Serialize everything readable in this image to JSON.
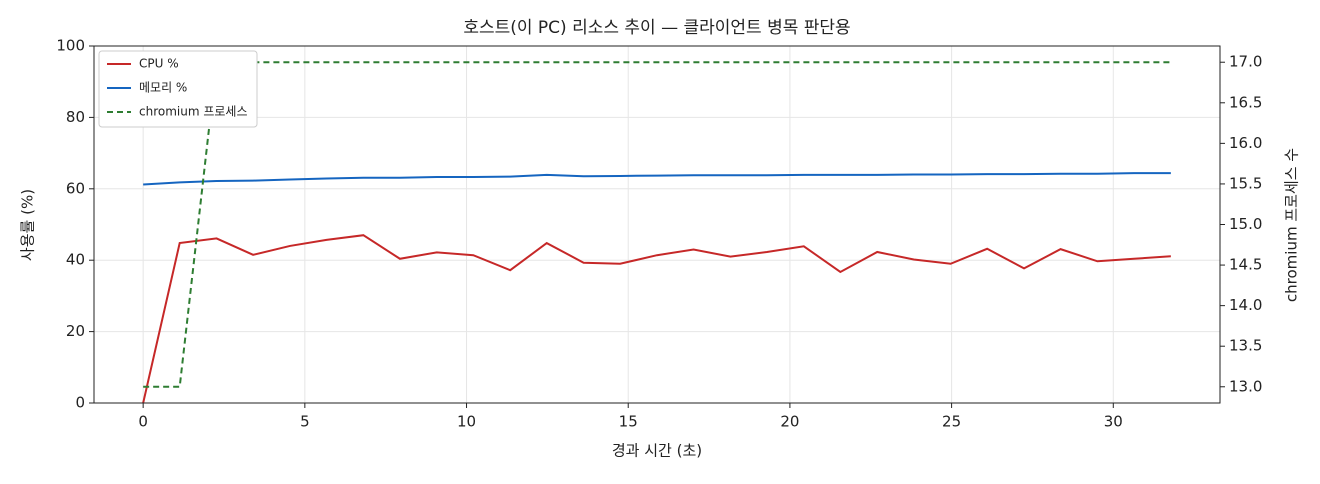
{
  "chart_data": {
    "type": "line",
    "title": "호스트(이 PC) 리소스 추이 — 클라이언트 병목 판단용",
    "xlabel": "경과 시간 (초)",
    "ylabel": "사용률 (%)",
    "y2label": "chromium 프로세스 수",
    "x": [
      0,
      1.13,
      2.27,
      3.4,
      4.54,
      5.67,
      6.81,
      7.94,
      9.08,
      10.21,
      11.35,
      12.48,
      13.62,
      14.75,
      15.89,
      17.02,
      18.16,
      19.29,
      20.43,
      21.56,
      22.7,
      23.83,
      24.97,
      26.1,
      27.24,
      28.37,
      29.51,
      30.64,
      31.78
    ],
    "series": [
      {
        "name": "CPU %",
        "color": "#c62828",
        "values": [
          0,
          44.8,
          46.1,
          41.5,
          44,
          45.7,
          47,
          40.4,
          42.2,
          41.4,
          37.2,
          44.8,
          39.3,
          39,
          41.4,
          43,
          41,
          42.3,
          43.9,
          36.7,
          42.3,
          40.2,
          39,
          43.2,
          37.7,
          43.1,
          39.7,
          40.4,
          41.1
        ]
      },
      {
        "name": "메모리 %",
        "color": "#1565c0",
        "values": [
          61.2,
          61.8,
          62.2,
          62.3,
          62.6,
          62.9,
          63.1,
          63.1,
          63.3,
          63.3,
          63.4,
          63.9,
          63.5,
          63.6,
          63.7,
          63.8,
          63.8,
          63.8,
          63.9,
          63.9,
          63.9,
          64,
          64,
          64.1,
          64.1,
          64.2,
          64.2,
          64.4,
          64.4
        ]
      },
      {
        "name": "chromium 프로세스",
        "color": "#2e7d32",
        "dashed": true,
        "axis": "y2",
        "values": [
          13,
          13,
          17,
          17,
          17,
          17,
          17,
          17,
          17,
          17,
          17,
          17,
          17,
          17,
          17,
          17,
          17,
          17,
          17,
          17,
          17,
          17,
          17,
          17,
          17,
          17,
          17,
          17,
          17
        ]
      }
    ],
    "xlim": [
      -1.52,
      33.3
    ],
    "xticks": [
      0,
      5,
      10,
      15,
      20,
      25,
      30
    ],
    "ylim": [
      0,
      100
    ],
    "yticks": [
      0,
      20,
      40,
      60,
      80,
      100
    ],
    "y2lim": [
      12.8,
      17.2
    ],
    "y2ticks": [
      {
        "value": 13,
        "label": "13.0"
      },
      {
        "value": 13.5,
        "label": "13.5"
      },
      {
        "value": 14,
        "label": "14.0"
      },
      {
        "value": 14.5,
        "label": "14.5"
      },
      {
        "value": 15,
        "label": "15.0"
      },
      {
        "value": 15.5,
        "label": "15.5"
      },
      {
        "value": 16,
        "label": "16.0"
      },
      {
        "value": 16.5,
        "label": "16.5"
      },
      {
        "value": 17,
        "label": "17.0"
      }
    ],
    "grid": true,
    "legend": "upper-left"
  }
}
